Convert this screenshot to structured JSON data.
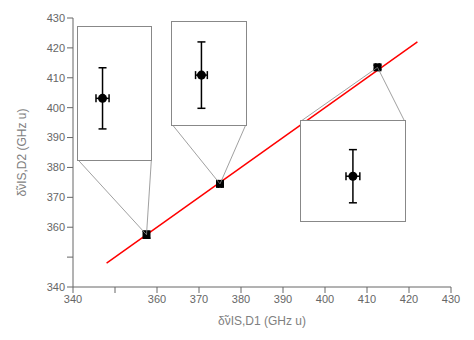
{
  "chart_data": {
    "type": "scatter",
    "xlabel": "δ̃νIS,D1 (GHz u)",
    "ylabel": "δ̃νIS,D2 (GHz u)",
    "xlim": [
      340,
      430
    ],
    "ylim": [
      340,
      430
    ],
    "xticks": [
      340,
      {
        "value": 350,
        "label": null
      },
      360,
      370,
      380,
      390,
      400,
      410,
      420,
      430
    ],
    "yticks": [
      340,
      {
        "value": 350,
        "label": null
      },
      360,
      370,
      380,
      390,
      400,
      410,
      420,
      430
    ],
    "grid": false,
    "points": {
      "x": [
        357.5,
        375.0,
        412.5
      ],
      "y": [
        357.5,
        374.5,
        413.5
      ],
      "xerr": [
        0.4,
        0.4,
        0.4
      ],
      "yerr": [
        1.2,
        0.7,
        0.7
      ],
      "color": "#000000",
      "marker": "square"
    },
    "fit_line": {
      "x": [
        348,
        422
      ],
      "y": [
        348,
        422
      ],
      "color": "#ff0000"
    },
    "insets": [
      {
        "xlim": [
          356.0,
          360.5
        ],
        "ylim": [
          381.0,
          400.5
        ],
        "x": 357.5,
        "y": 390.0,
        "xerr": 0.4,
        "yerr": 4.5,
        "marker": "circle",
        "target": [
          357.5,
          357.5
        ],
        "connectors": [
          [
            356.0,
            381.0
          ],
          [
            360.5,
            381.0
          ]
        ],
        "color": "#888888"
      },
      {
        "xlim": [
          373.0,
          378.0
        ],
        "ylim": [
          392.0,
          423.0
        ],
        "x": 375.0,
        "y": 407.0,
        "xerr": 0.4,
        "yerr": 10.0,
        "marker": "circle",
        "target": [
          375.0,
          374.5
        ],
        "connectors": [
          [
            373.0,
            392.0
          ],
          [
            378.0,
            392.0
          ]
        ],
        "color": "#888888"
      },
      {
        "xlim": [
          409.5,
          415.5
        ],
        "ylim": [
          366.5,
          391.0
        ],
        "x": 412.5,
        "y": 377.5,
        "xerr": 0.4,
        "yerr": 6.5,
        "marker": "circle",
        "target": [
          412.5,
          413.5
        ],
        "connectors": [
          [
            409.5,
            391.0
          ],
          [
            415.5,
            391.0
          ]
        ],
        "color": "#888888"
      }
    ]
  }
}
